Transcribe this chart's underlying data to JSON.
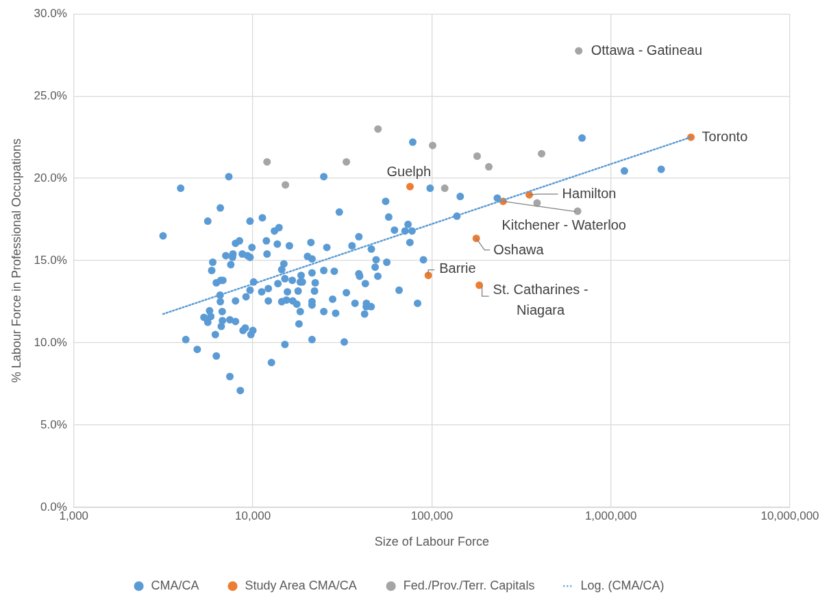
{
  "chart_data": {
    "type": "scatter",
    "xlabel": "Size of Labour Force",
    "ylabel": "% Labour Force in Professional Occupations",
    "log": "x",
    "grid": true,
    "legend": "bottom",
    "marker": "circle",
    "xlim": [
      1000,
      10000000
    ],
    "xticks": [
      {
        "value": 1000,
        "label": "1,000"
      },
      {
        "value": 10000,
        "label": "10,000"
      },
      {
        "value": 100000,
        "label": "100,000"
      },
      {
        "value": 1000000,
        "label": "1,000,000"
      },
      {
        "value": 10000000,
        "label": "10,000,000"
      }
    ],
    "ylim": [
      0,
      30
    ],
    "yticks": [
      {
        "value": 0,
        "label": "0.0%"
      },
      {
        "value": 5,
        "label": "5.0%"
      },
      {
        "value": 10,
        "label": "10.0%"
      },
      {
        "value": 15,
        "label": "15.0%"
      },
      {
        "value": 20,
        "label": "20.0%"
      },
      {
        "value": 25,
        "label": "25.0%"
      },
      {
        "value": 30,
        "label": "30.0%"
      }
    ],
    "series": [
      {
        "name": "CMA/CA",
        "color": "#5b9bd5",
        "x": [
          7340,
          3950,
          6580,
          5600,
          3150,
          9640,
          11300,
          13200,
          14000,
          8000,
          8420,
          11900,
          9880,
          13700,
          16000,
          7060,
          7740,
          7700,
          8730,
          9330,
          9640,
          12000,
          5970,
          7530,
          5890,
          14900,
          14500,
          6250,
          6620,
          6800,
          10100,
          15100,
          13800,
          16600,
          9640,
          11200,
          12200,
          6560,
          6580,
          8000,
          9160,
          12200,
          14500,
          15400,
          5730,
          5330,
          5820,
          6740,
          5600,
          6760,
          6660,
          7440,
          8000,
          6170,
          8810,
          9070,
          9750,
          10000,
          4220,
          4890,
          6250,
          15100,
          12700,
          7440,
          8510,
          24900,
          30400,
          39100,
          21100,
          25900,
          35800,
          45900,
          20200,
          21400,
          48800,
          48200,
          49900,
          24900,
          28500,
          39100,
          39500,
          42500,
          18600,
          21400,
          18400,
          18900,
          22300,
          17900,
          22100,
          15600,
          33300,
          27900,
          37200,
          43100,
          43000,
          45800,
          42100,
          21400,
          21400,
          18400,
          24900,
          29000,
          18100,
          16700,
          17600,
          21400,
          32400,
          78200,
          97800,
          144000,
          55200,
          57400,
          138000,
          73600,
          61800,
          70800,
          77500,
          75400,
          56000,
          65600,
          89700,
          83200,
          690000,
          1190000,
          1910000,
          232000
        ],
        "values": [
          20.1,
          19.4,
          18.2,
          17.4,
          16.5,
          17.4,
          17.6,
          16.8,
          17.0,
          16.05,
          16.2,
          16.2,
          15.8,
          16.0,
          15.9,
          15.3,
          15.4,
          15.2,
          15.4,
          15.3,
          15.2,
          15.4,
          14.9,
          14.75,
          14.4,
          14.8,
          14.45,
          13.65,
          13.8,
          13.8,
          13.7,
          13.9,
          13.6,
          13.8,
          13.2,
          13.1,
          13.3,
          12.9,
          12.5,
          12.55,
          12.8,
          12.55,
          12.5,
          12.6,
          11.95,
          11.55,
          11.6,
          11.9,
          11.25,
          11.35,
          11.0,
          11.4,
          11.3,
          10.5,
          10.75,
          10.9,
          10.5,
          10.75,
          10.2,
          9.6,
          9.2,
          9.9,
          8.8,
          7.95,
          7.1,
          20.1,
          17.95,
          16.45,
          16.1,
          15.8,
          15.9,
          15.7,
          15.25,
          15.1,
          15.05,
          14.6,
          14.05,
          14.4,
          14.35,
          14.2,
          14.05,
          13.6,
          14.1,
          14.25,
          13.7,
          13.7,
          13.65,
          13.15,
          13.15,
          13.1,
          13.05,
          12.65,
          12.4,
          12.4,
          12.2,
          12.2,
          11.75,
          12.5,
          12.3,
          11.9,
          11.9,
          11.8,
          11.15,
          12.55,
          12.35,
          10.2,
          10.05,
          22.2,
          19.4,
          18.9,
          18.6,
          17.65,
          17.7,
          17.2,
          16.85,
          16.8,
          16.8,
          16.1,
          14.9,
          13.2,
          15.05,
          12.4,
          22.45,
          20.45,
          20.55,
          18.8
        ]
      },
      {
        "name": "Study Area CMA/CA",
        "color": "#ed7d31",
        "x": [
          75500,
          95500,
          184000,
          177000,
          250000,
          350000,
          2800000
        ],
        "values": [
          19.5,
          14.1,
          13.5,
          16.35,
          18.6,
          19.0,
          22.5
        ]
      },
      {
        "name": "Fed./Prov./Terr. Capitals",
        "color": "#a5a5a5",
        "x": [
          12000,
          15200,
          33300,
          50000,
          101000,
          179000,
          208000,
          118000,
          661000,
          410000,
          387000,
          652000
        ],
        "values": [
          21.0,
          19.6,
          21.0,
          23.0,
          22.0,
          21.35,
          20.7,
          19.4,
          27.75,
          21.5,
          18.5,
          18.0
        ]
      },
      {
        "name": "Log. (CMA/CA)",
        "type": "line",
        "color": "#5b9bd5",
        "line_style": "dotted",
        "marker": "none",
        "x": [
          3150,
          2800000
        ],
        "values": [
          11.75,
          22.5
        ]
      }
    ],
    "annotations": [
      {
        "text": "Ottawa - Gatineau",
        "x": 661000,
        "y": 27.75
      },
      {
        "text": "Toronto",
        "x": 2800000,
        "y": 22.5
      },
      {
        "text": "Guelph",
        "x": 75500,
        "y": 19.5
      },
      {
        "text": "Hamilton",
        "x": 350000,
        "y": 19.0
      },
      {
        "text": "Kitchener - Waterloo",
        "x": 250000,
        "y": 18.6
      },
      {
        "text": "Oshawa",
        "x": 177000,
        "y": 16.35
      },
      {
        "text": "Barrie",
        "x": 95500,
        "y": 14.1
      },
      {
        "text": "St. Catharines - Niagara",
        "x": 184000,
        "y": 13.5
      }
    ]
  }
}
